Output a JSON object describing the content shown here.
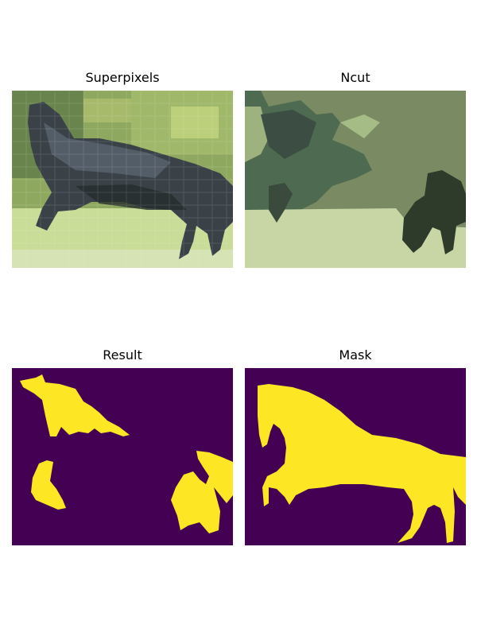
{
  "panels": {
    "superpixels": {
      "title": "Superpixels"
    },
    "ncut": {
      "title": "Ncut"
    },
    "result": {
      "title": "Result"
    },
    "mask": {
      "title": "Mask"
    }
  },
  "colors": {
    "mask_foreground": "#fde725",
    "mask_background": "#440154",
    "ncut_background": "#7a8a62",
    "ncut_ground": "#c8d6a6",
    "ncut_dark": "#2e3a2a",
    "ncut_mid": "#4e6a50",
    "superpixel_horse": "#3a4248",
    "superpixel_grass": "#c9dc98",
    "superpixel_foliage": "#8fa860"
  }
}
